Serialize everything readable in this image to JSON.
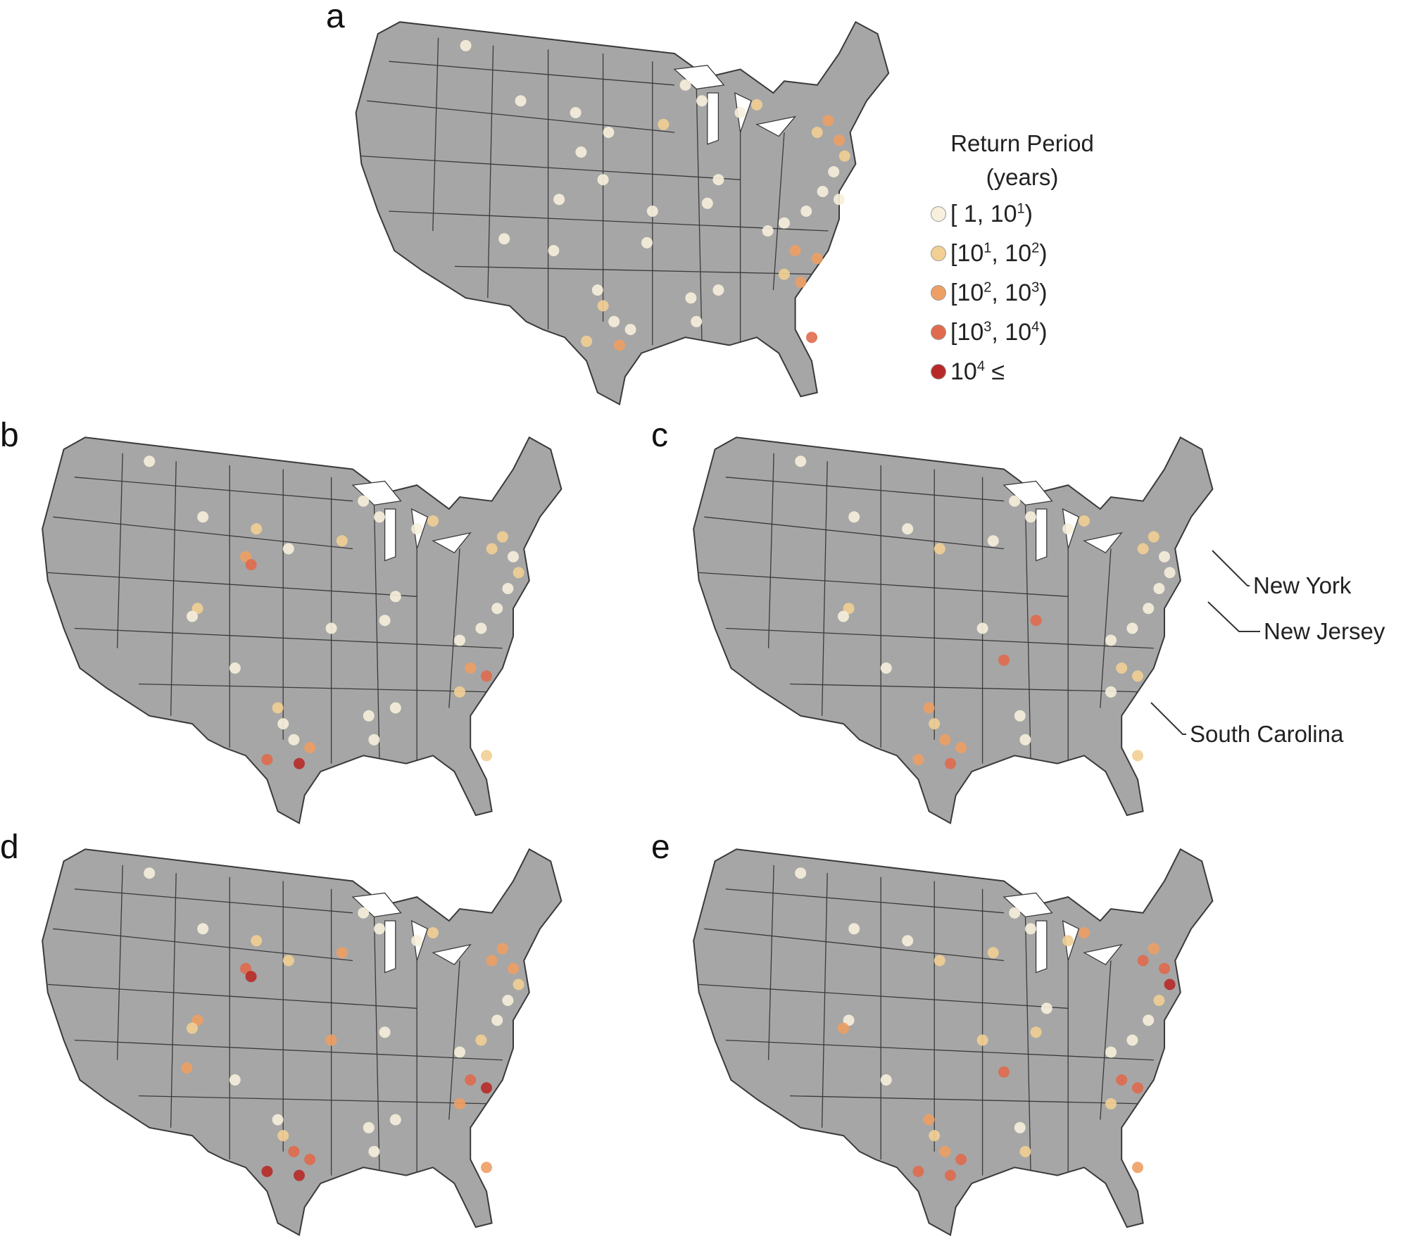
{
  "panels": [
    {
      "label": "a",
      "markers": [
        [
          0.22,
          0.08,
          0
        ],
        [
          0.32,
          0.22,
          0
        ],
        [
          0.42,
          0.25,
          0
        ],
        [
          0.43,
          0.35,
          0
        ],
        [
          0.48,
          0.3,
          0
        ],
        [
          0.47,
          0.42,
          0
        ],
        [
          0.58,
          0.28,
          1
        ],
        [
          0.72,
          0.25,
          0
        ],
        [
          0.75,
          0.23,
          1
        ],
        [
          0.86,
          0.3,
          1
        ],
        [
          0.88,
          0.27,
          2
        ],
        [
          0.9,
          0.32,
          2
        ],
        [
          0.91,
          0.36,
          1
        ],
        [
          0.89,
          0.4,
          0
        ],
        [
          0.87,
          0.45,
          0
        ],
        [
          0.9,
          0.47,
          0
        ],
        [
          0.84,
          0.5,
          0
        ],
        [
          0.8,
          0.53,
          0
        ],
        [
          0.77,
          0.55,
          0
        ],
        [
          0.82,
          0.6,
          2
        ],
        [
          0.86,
          0.62,
          2
        ],
        [
          0.8,
          0.66,
          1
        ],
        [
          0.83,
          0.68,
          2
        ],
        [
          0.46,
          0.7,
          0
        ],
        [
          0.47,
          0.74,
          1
        ],
        [
          0.49,
          0.78,
          0
        ],
        [
          0.44,
          0.83,
          1
        ],
        [
          0.5,
          0.84,
          2
        ],
        [
          0.52,
          0.8,
          0
        ],
        [
          0.63,
          0.72,
          0
        ],
        [
          0.64,
          0.78,
          0
        ],
        [
          0.68,
          0.7,
          0
        ],
        [
          0.56,
          0.5,
          0
        ],
        [
          0.55,
          0.58,
          0
        ],
        [
          0.38,
          0.6,
          0
        ],
        [
          0.39,
          0.47,
          0
        ],
        [
          0.29,
          0.57,
          0
        ],
        [
          0.66,
          0.48,
          0
        ],
        [
          0.68,
          0.42,
          0
        ],
        [
          0.85,
          0.82,
          3
        ],
        [
          0.62,
          0.18,
          0
        ],
        [
          0.65,
          0.22,
          0
        ]
      ]
    },
    {
      "label": "b",
      "markers": [
        [
          0.22,
          0.08,
          0
        ],
        [
          0.32,
          0.22,
          0
        ],
        [
          0.4,
          0.32,
          2
        ],
        [
          0.41,
          0.34,
          3
        ],
        [
          0.42,
          0.25,
          1
        ],
        [
          0.48,
          0.3,
          0
        ],
        [
          0.58,
          0.28,
          1
        ],
        [
          0.72,
          0.25,
          0
        ],
        [
          0.75,
          0.23,
          1
        ],
        [
          0.86,
          0.3,
          1
        ],
        [
          0.88,
          0.27,
          1
        ],
        [
          0.9,
          0.32,
          0
        ],
        [
          0.91,
          0.36,
          1
        ],
        [
          0.89,
          0.4,
          0
        ],
        [
          0.87,
          0.45,
          0
        ],
        [
          0.84,
          0.5,
          0
        ],
        [
          0.8,
          0.53,
          0
        ],
        [
          0.82,
          0.6,
          2
        ],
        [
          0.85,
          0.62,
          3
        ],
        [
          0.8,
          0.66,
          1
        ],
        [
          0.46,
          0.7,
          1
        ],
        [
          0.47,
          0.74,
          0
        ],
        [
          0.49,
          0.78,
          0
        ],
        [
          0.44,
          0.83,
          3
        ],
        [
          0.5,
          0.84,
          4
        ],
        [
          0.52,
          0.8,
          2
        ],
        [
          0.63,
          0.72,
          0
        ],
        [
          0.64,
          0.78,
          0
        ],
        [
          0.68,
          0.7,
          0
        ],
        [
          0.56,
          0.5,
          0
        ],
        [
          0.38,
          0.6,
          0
        ],
        [
          0.31,
          0.45,
          1
        ],
        [
          0.3,
          0.47,
          0
        ],
        [
          0.66,
          0.48,
          0
        ],
        [
          0.68,
          0.42,
          0
        ],
        [
          0.85,
          0.82,
          1
        ],
        [
          0.62,
          0.18,
          0
        ],
        [
          0.65,
          0.22,
          0
        ]
      ]
    },
    {
      "label": "c",
      "markers": [
        [
          0.22,
          0.08,
          0
        ],
        [
          0.32,
          0.22,
          0
        ],
        [
          0.42,
          0.25,
          0
        ],
        [
          0.48,
          0.3,
          1
        ],
        [
          0.58,
          0.28,
          0
        ],
        [
          0.66,
          0.48,
          3
        ],
        [
          0.72,
          0.25,
          0
        ],
        [
          0.75,
          0.23,
          1
        ],
        [
          0.86,
          0.3,
          1
        ],
        [
          0.88,
          0.27,
          1
        ],
        [
          0.9,
          0.32,
          0
        ],
        [
          0.91,
          0.36,
          0
        ],
        [
          0.89,
          0.4,
          0
        ],
        [
          0.87,
          0.45,
          0
        ],
        [
          0.84,
          0.5,
          0
        ],
        [
          0.8,
          0.53,
          0
        ],
        [
          0.82,
          0.6,
          1
        ],
        [
          0.85,
          0.62,
          1
        ],
        [
          0.8,
          0.66,
          0
        ],
        [
          0.46,
          0.7,
          2
        ],
        [
          0.47,
          0.74,
          1
        ],
        [
          0.49,
          0.78,
          2
        ],
        [
          0.44,
          0.83,
          2
        ],
        [
          0.5,
          0.84,
          3
        ],
        [
          0.52,
          0.8,
          2
        ],
        [
          0.63,
          0.72,
          0
        ],
        [
          0.6,
          0.58,
          3
        ],
        [
          0.64,
          0.78,
          0
        ],
        [
          0.56,
          0.5,
          0
        ],
        [
          0.38,
          0.6,
          0
        ],
        [
          0.31,
          0.45,
          1
        ],
        [
          0.3,
          0.47,
          0
        ],
        [
          0.85,
          0.82,
          1
        ],
        [
          0.62,
          0.18,
          0
        ],
        [
          0.65,
          0.22,
          0
        ]
      ]
    },
    {
      "label": "d",
      "markers": [
        [
          0.22,
          0.08,
          0
        ],
        [
          0.32,
          0.22,
          0
        ],
        [
          0.4,
          0.32,
          3
        ],
        [
          0.41,
          0.34,
          4
        ],
        [
          0.42,
          0.25,
          1
        ],
        [
          0.48,
          0.3,
          1
        ],
        [
          0.58,
          0.28,
          2
        ],
        [
          0.72,
          0.25,
          0
        ],
        [
          0.75,
          0.23,
          1
        ],
        [
          0.86,
          0.3,
          2
        ],
        [
          0.88,
          0.27,
          2
        ],
        [
          0.9,
          0.32,
          2
        ],
        [
          0.91,
          0.36,
          1
        ],
        [
          0.89,
          0.4,
          0
        ],
        [
          0.87,
          0.45,
          0
        ],
        [
          0.84,
          0.5,
          1
        ],
        [
          0.8,
          0.53,
          0
        ],
        [
          0.82,
          0.6,
          3
        ],
        [
          0.85,
          0.62,
          4
        ],
        [
          0.8,
          0.66,
          2
        ],
        [
          0.46,
          0.7,
          0
        ],
        [
          0.47,
          0.74,
          1
        ],
        [
          0.49,
          0.78,
          3
        ],
        [
          0.44,
          0.83,
          4
        ],
        [
          0.5,
          0.84,
          4
        ],
        [
          0.52,
          0.8,
          3
        ],
        [
          0.63,
          0.72,
          0
        ],
        [
          0.64,
          0.78,
          0
        ],
        [
          0.68,
          0.7,
          0
        ],
        [
          0.56,
          0.5,
          2
        ],
        [
          0.38,
          0.6,
          0
        ],
        [
          0.31,
          0.45,
          2
        ],
        [
          0.3,
          0.47,
          1
        ],
        [
          0.29,
          0.57,
          2
        ],
        [
          0.66,
          0.48,
          0
        ],
        [
          0.85,
          0.82,
          2
        ],
        [
          0.62,
          0.18,
          0
        ],
        [
          0.65,
          0.22,
          0
        ]
      ]
    },
    {
      "label": "e",
      "markers": [
        [
          0.22,
          0.08,
          0
        ],
        [
          0.32,
          0.22,
          0
        ],
        [
          0.42,
          0.25,
          0
        ],
        [
          0.48,
          0.3,
          1
        ],
        [
          0.58,
          0.28,
          1
        ],
        [
          0.72,
          0.25,
          1
        ],
        [
          0.75,
          0.23,
          2
        ],
        [
          0.86,
          0.3,
          3
        ],
        [
          0.88,
          0.27,
          2
        ],
        [
          0.9,
          0.32,
          3
        ],
        [
          0.91,
          0.36,
          4
        ],
        [
          0.89,
          0.4,
          1
        ],
        [
          0.87,
          0.45,
          0
        ],
        [
          0.84,
          0.5,
          0
        ],
        [
          0.8,
          0.53,
          0
        ],
        [
          0.82,
          0.6,
          3
        ],
        [
          0.85,
          0.62,
          3
        ],
        [
          0.8,
          0.66,
          1
        ],
        [
          0.46,
          0.7,
          2
        ],
        [
          0.47,
          0.74,
          1
        ],
        [
          0.49,
          0.78,
          2
        ],
        [
          0.44,
          0.83,
          3
        ],
        [
          0.5,
          0.84,
          3
        ],
        [
          0.52,
          0.8,
          3
        ],
        [
          0.63,
          0.72,
          0
        ],
        [
          0.64,
          0.78,
          1
        ],
        [
          0.56,
          0.5,
          1
        ],
        [
          0.6,
          0.58,
          3
        ],
        [
          0.38,
          0.6,
          0
        ],
        [
          0.31,
          0.45,
          0
        ],
        [
          0.3,
          0.47,
          2
        ],
        [
          0.66,
          0.48,
          1
        ],
        [
          0.68,
          0.42,
          0
        ],
        [
          0.85,
          0.82,
          2
        ],
        [
          0.62,
          0.18,
          0
        ],
        [
          0.65,
          0.22,
          0
        ]
      ]
    }
  ],
  "legend": {
    "title_line1": "Return Period",
    "title_line2": "(years)",
    "items": [
      {
        "label": "[ 1, 10",
        "sup": "1",
        "suffix": ")",
        "color": "#f7f0dc"
      },
      {
        "label": "[10",
        "sup": "1",
        "mid": ", 10",
        "sup2": "2",
        "suffix": ")",
        "color": "#f2cf93"
      },
      {
        "label": "[10",
        "sup": "2",
        "mid": ", 10",
        "sup2": "3",
        "suffix": ")",
        "color": "#ee9f64"
      },
      {
        "label": "[10",
        "sup": "3",
        "mid": ", 10",
        "sup2": "4",
        "suffix": ")",
        "color": "#e06a4d"
      },
      {
        "label": "10",
        "sup": "4",
        "suffix": " ≤",
        "color": "#b82a28"
      }
    ]
  },
  "callouts": {
    "new_york": "New York",
    "new_jersey": "New Jersey",
    "south_carolina": "South Carolina"
  },
  "colors": {
    "land": "#a6a6a6",
    "border": "#3a3a3a",
    "classes": [
      "#f7f0dc",
      "#f2cf93",
      "#ee9f64",
      "#e06a4d",
      "#b82a28"
    ]
  }
}
